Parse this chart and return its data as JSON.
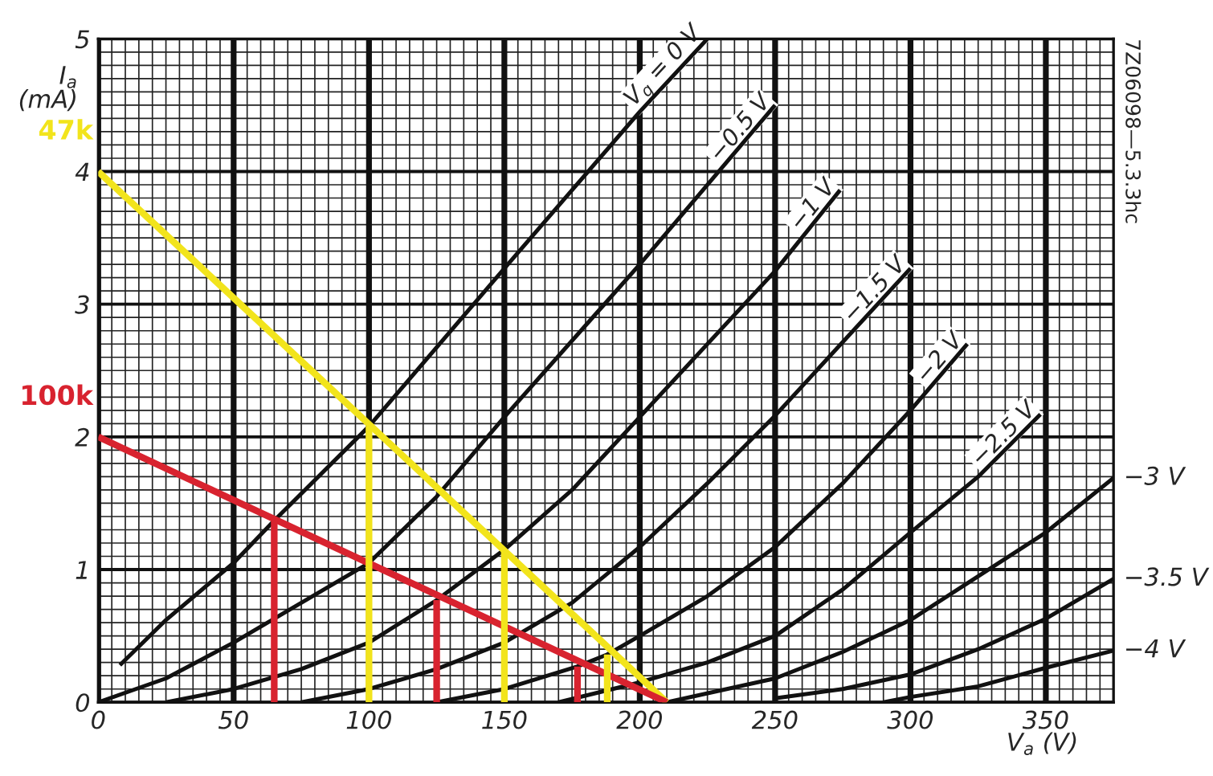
{
  "chart_data": {
    "type": "line",
    "xlabel": "V$_{a}$ (V)",
    "ylabel": "I$_{a}$ (mA)",
    "xlim": [
      0,
      375
    ],
    "ylim": [
      0,
      5
    ],
    "xticks": [
      0,
      50,
      100,
      150,
      200,
      250,
      300,
      350
    ],
    "yticks": [
      0,
      1,
      2,
      3,
      4,
      5
    ],
    "grid": true,
    "legend": false,
    "marker": "none",
    "line_style": "solid",
    "annotations": [
      "7Z06098—5.3.3hc"
    ],
    "series": [
      {
        "name": "V$_{g}$ = 0 V",
        "color": "#111111",
        "x": [
          8,
          25,
          50,
          65,
          100,
          150,
          200,
          225
        ],
        "values": [
          0.28,
          0.62,
          1.05,
          1.37,
          2.08,
          3.27,
          4.45,
          5.0
        ]
      },
      {
        "name": "−0.5 V",
        "color": "#111111",
        "x": [
          0,
          25,
          50,
          75,
          100,
          125,
          150,
          200,
          250
        ],
        "values": [
          0,
          0.18,
          0.45,
          0.75,
          1.05,
          1.55,
          2.15,
          3.3,
          4.5
        ]
      },
      {
        "name": "−1 V",
        "color": "#111111",
        "x": [
          25,
          50,
          75,
          100,
          125,
          150,
          175,
          200,
          250,
          274
        ],
        "values": [
          0,
          0.1,
          0.25,
          0.45,
          0.77,
          1.15,
          1.6,
          2.15,
          3.25,
          3.86
        ]
      },
      {
        "name": "−1.5 V",
        "color": "#111111",
        "x": [
          75,
          100,
          125,
          150,
          175,
          200,
          225,
          250,
          300
        ],
        "values": [
          0,
          0.1,
          0.25,
          0.45,
          0.75,
          1.17,
          1.65,
          2.16,
          3.27
        ]
      },
      {
        "name": "−2 V",
        "color": "#111111",
        "x": [
          125,
          150,
          177,
          188,
          200,
          225,
          250,
          275,
          300,
          321
        ],
        "values": [
          0,
          0.1,
          0.27,
          0.36,
          0.5,
          0.8,
          1.17,
          1.65,
          2.2,
          2.7
        ]
      },
      {
        "name": "−2.5 V",
        "color": "#111111",
        "x": [
          170,
          200,
          225,
          250,
          275,
          300,
          325,
          348
        ],
        "values": [
          0,
          0.15,
          0.3,
          0.5,
          0.85,
          1.28,
          1.7,
          2.17
        ]
      },
      {
        "name": "−3 V",
        "color": "#111111",
        "x": [
          210,
          250,
          275,
          300,
          325,
          350,
          375
        ],
        "values": [
          0,
          0.18,
          0.38,
          0.62,
          0.95,
          1.28,
          1.69
        ]
      },
      {
        "name": "−3.5 V",
        "color": "#111111",
        "x": [
          250,
          275,
          300,
          325,
          350,
          375
        ],
        "values": [
          0.03,
          0.1,
          0.21,
          0.4,
          0.63,
          0.93
        ]
      },
      {
        "name": "−4 V",
        "color": "#111111",
        "x": [
          290,
          300,
          325,
          350,
          375
        ],
        "values": [
          0,
          0.04,
          0.12,
          0.26,
          0.39
        ]
      },
      {
        "name": "47k",
        "color": "#f2e41c",
        "x": [
          0,
          210
        ],
        "values": [
          4,
          0
        ]
      },
      {
        "name": "100k",
        "color": "#d8232f",
        "x": [
          0,
          210
        ],
        "values": [
          2,
          0
        ]
      },
      {
        "color": "#d8232f",
        "x": [
          65,
          65
        ],
        "values": [
          1.37,
          0
        ]
      },
      {
        "color": "#d8232f",
        "x": [
          125,
          125
        ],
        "values": [
          0.77,
          0
        ]
      },
      {
        "color": "#d8232f",
        "x": [
          177,
          177
        ],
        "values": [
          0.27,
          0
        ]
      },
      {
        "color": "#f2e41c",
        "x": [
          100,
          100
        ],
        "values": [
          2.08,
          0
        ]
      },
      {
        "color": "#f2e41c",
        "x": [
          150,
          150
        ],
        "values": [
          1.15,
          0
        ]
      },
      {
        "color": "#f2e41c",
        "x": [
          188,
          188
        ],
        "values": [
          0.36,
          0
        ]
      }
    ]
  }
}
